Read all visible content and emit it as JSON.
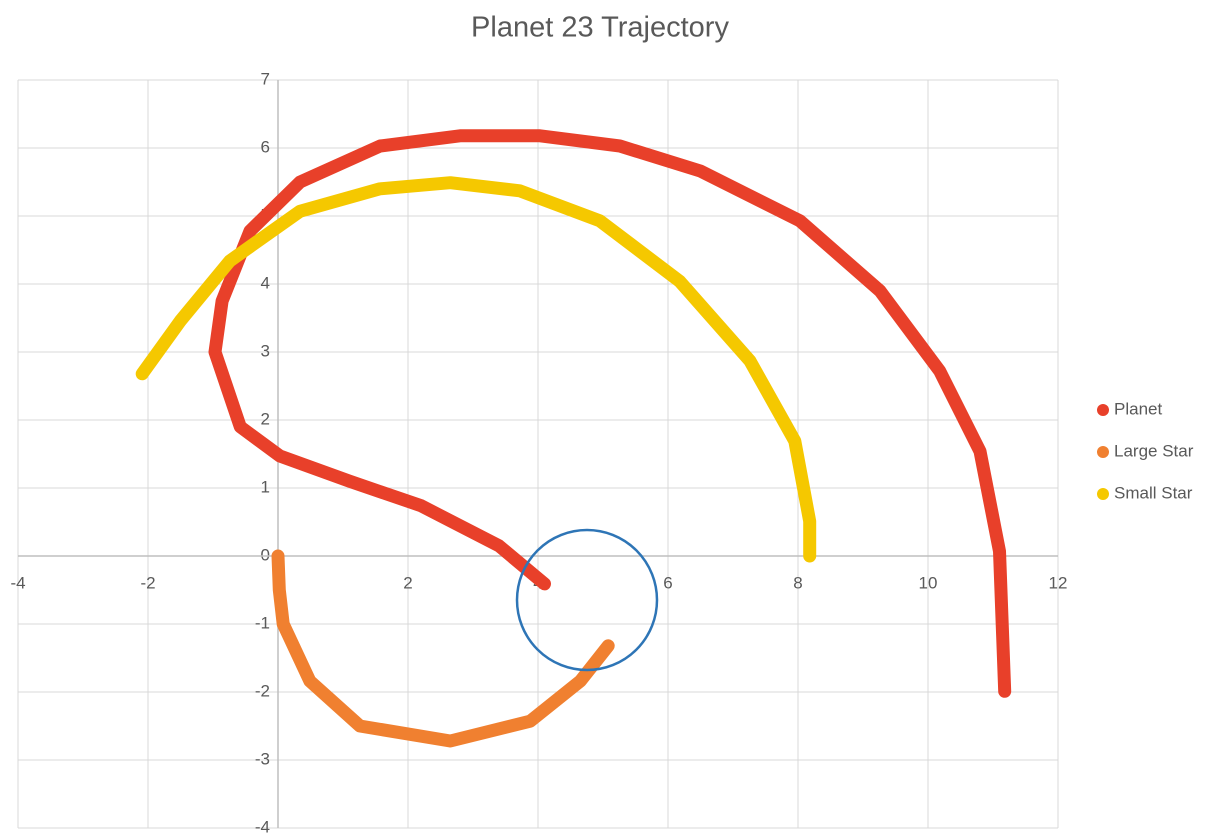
{
  "chart_data": {
    "type": "scatter",
    "title": "Planet 23 Trajectory",
    "xlim": [
      -4,
      12
    ],
    "xticks": [
      -4,
      -2,
      0,
      2,
      4,
      6,
      8,
      10,
      12
    ],
    "ylim": [
      -4,
      7
    ],
    "yticks": [
      -4,
      -3,
      -2,
      -1,
      0,
      1,
      2,
      3,
      4,
      5,
      6,
      7
    ],
    "grid": true,
    "legend": "right",
    "series": [
      {
        "name": "Planet",
        "color": "#e8402a",
        "x": [
          4.1,
          3.4,
          2.2,
          1.1,
          0.03,
          -0.58,
          -0.97,
          -0.86,
          -0.43,
          0.34,
          1.57,
          2.8,
          4.03,
          5.26,
          6.5,
          8.03,
          9.26,
          10.18,
          10.8,
          11.1,
          11.18
        ],
        "values": [
          -0.41,
          0.15,
          0.74,
          1.1,
          1.47,
          1.9,
          3.0,
          3.75,
          4.78,
          5.5,
          6.03,
          6.18,
          6.18,
          6.03,
          5.66,
          4.93,
          3.9,
          2.72,
          1.54,
          0.07,
          -1.99
        ]
      },
      {
        "name": "Large Star",
        "color": "#f08030",
        "x": [
          0,
          0.02,
          0.08,
          0.49,
          1.26,
          2.65,
          3.88,
          4.65,
          5.08
        ],
        "values": [
          0,
          -0.5,
          -1.0,
          -1.84,
          -2.5,
          -2.72,
          -2.43,
          -1.84,
          -1.32
        ]
      },
      {
        "name": "Small Star",
        "color": "#f5c800",
        "x": [
          -2.09,
          -1.5,
          -0.74,
          0.34,
          1.57,
          2.65,
          3.72,
          4.95,
          6.18,
          7.26,
          7.95,
          8.18,
          8.18
        ],
        "values": [
          2.68,
          3.46,
          4.34,
          5.07,
          5.4,
          5.49,
          5.37,
          4.93,
          4.04,
          2.87,
          1.69,
          0.51,
          0
        ]
      }
    ]
  }
}
